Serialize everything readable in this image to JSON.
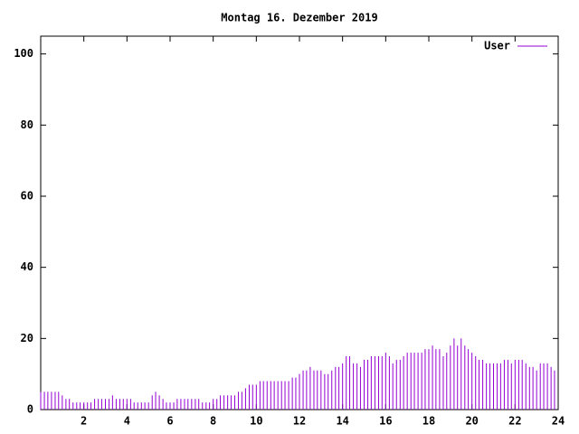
{
  "chart_data": {
    "type": "impulses",
    "title": "Montag 16. Dezember 2019",
    "xlim": [
      0,
      24
    ],
    "xticks": [
      2,
      4,
      6,
      8,
      10,
      12,
      14,
      16,
      18,
      20,
      22,
      24
    ],
    "ylim": [
      0,
      105
    ],
    "yticks": [
      0,
      20,
      40,
      60,
      80,
      100
    ],
    "legend": "top-right",
    "series": [
      {
        "name": "User",
        "color": "#9400d3",
        "x": [
          0,
          0.17,
          0.33,
          0.5,
          0.67,
          0.83,
          1,
          1.17,
          1.33,
          1.5,
          1.67,
          1.83,
          2,
          2.17,
          2.33,
          2.5,
          2.67,
          2.83,
          3,
          3.17,
          3.33,
          3.5,
          3.67,
          3.83,
          4,
          4.17,
          4.33,
          4.5,
          4.67,
          4.83,
          5,
          5.17,
          5.33,
          5.5,
          5.67,
          5.83,
          6,
          6.17,
          6.33,
          6.5,
          6.67,
          6.83,
          7,
          7.17,
          7.33,
          7.5,
          7.67,
          7.83,
          8,
          8.17,
          8.33,
          8.5,
          8.67,
          8.83,
          9,
          9.17,
          9.33,
          9.5,
          9.67,
          9.83,
          10,
          10.17,
          10.33,
          10.5,
          10.67,
          10.83,
          11,
          11.17,
          11.33,
          11.5,
          11.67,
          11.83,
          12,
          12.17,
          12.33,
          12.5,
          12.67,
          12.83,
          13,
          13.17,
          13.33,
          13.5,
          13.67,
          13.83,
          14,
          14.17,
          14.33,
          14.5,
          14.67,
          14.83,
          15,
          15.17,
          15.33,
          15.5,
          15.67,
          15.83,
          16,
          16.17,
          16.33,
          16.5,
          16.67,
          16.83,
          17,
          17.17,
          17.33,
          17.5,
          17.67,
          17.83,
          18,
          18.17,
          18.33,
          18.5,
          18.67,
          18.83,
          19,
          19.17,
          19.33,
          19.5,
          19.67,
          19.83,
          20,
          20.17,
          20.33,
          20.5,
          20.67,
          20.83,
          21,
          21.17,
          21.33,
          21.5,
          21.67,
          21.83,
          22,
          22.17,
          22.33,
          22.5,
          22.67,
          22.83,
          23,
          23.17,
          23.33,
          23.5,
          23.67,
          23.83
        ],
        "values": [
          5,
          5,
          5,
          5,
          5,
          5,
          4,
          3,
          3,
          2,
          2,
          2,
          2,
          2,
          2,
          3,
          3,
          3,
          3,
          3,
          4,
          3,
          3,
          3,
          3,
          3,
          2,
          2,
          2,
          2,
          2,
          4,
          5,
          4,
          3,
          2,
          2,
          2,
          3,
          3,
          3,
          3,
          3,
          3,
          3,
          2,
          2,
          2,
          3,
          3,
          4,
          4,
          4,
          4,
          4,
          5,
          5,
          6,
          7,
          7,
          7,
          8,
          8,
          8,
          8,
          8,
          8,
          8,
          8,
          8,
          9,
          9,
          10,
          11,
          11,
          12,
          11,
          11,
          11,
          10,
          10,
          11,
          12,
          12,
          13,
          15,
          15,
          13,
          13,
          12,
          14,
          14,
          15,
          15,
          15,
          15,
          16,
          15,
          13,
          14,
          14,
          15,
          16,
          16,
          16,
          16,
          16,
          17,
          17,
          18,
          17,
          17,
          15,
          16,
          18,
          20,
          18,
          20,
          18,
          17,
          16,
          15,
          14,
          14,
          13,
          13,
          13,
          13,
          13,
          14,
          14,
          13,
          14,
          14,
          14,
          13,
          12,
          12,
          11,
          13,
          13,
          13,
          12,
          11
        ]
      }
    ]
  }
}
